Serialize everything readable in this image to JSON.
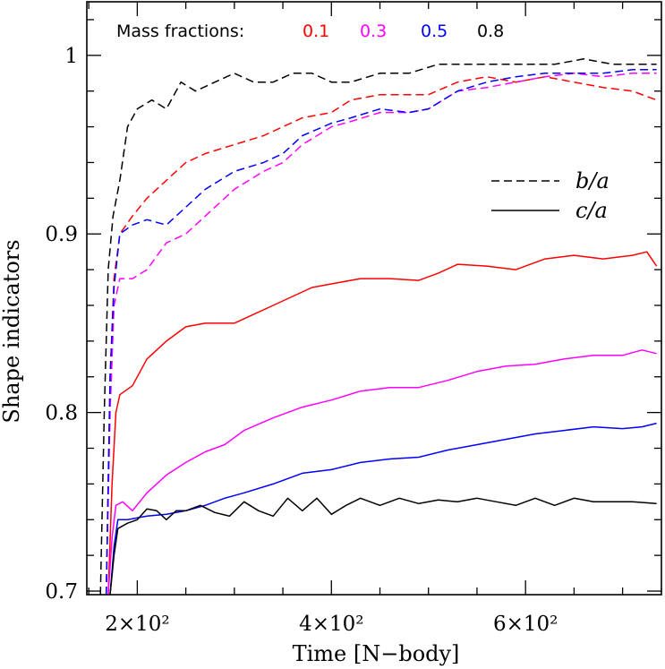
{
  "chart_data": {
    "type": "line",
    "xlabel": "Time [N−body]",
    "ylabel": "Shape indicators",
    "xlim": [
      148,
      740
    ],
    "ylim": [
      0.698,
      1.03
    ],
    "x_ticks": [
      {
        "value": 200,
        "label": "2×10²"
      },
      {
        "value": 400,
        "label": "4×10²"
      },
      {
        "value": 600,
        "label": "6×10²"
      }
    ],
    "y_ticks": [
      {
        "value": 0.7,
        "label": "0.7"
      },
      {
        "value": 0.8,
        "label": "0.8"
      },
      {
        "value": 0.9,
        "label": "0.9"
      },
      {
        "value": 1.0,
        "label": "1"
      }
    ],
    "legend": {
      "title": "Mass fractions:",
      "entries": [
        {
          "label": "0.1",
          "color": "#ff0000"
        },
        {
          "label": "0.3",
          "color": "#ff00ff"
        },
        {
          "label": "0.5",
          "color": "#0000ff"
        },
        {
          "label": "0.8",
          "color": "#000000"
        }
      ],
      "styles": [
        {
          "label": "b/a",
          "dash": "dashed"
        },
        {
          "label": "c/a",
          "dash": "solid"
        }
      ]
    },
    "series": [
      {
        "mass_fraction": "0.1",
        "ratio": "b/a",
        "color": "#ff0000",
        "dash": "dashed",
        "points": [
          [
            168,
            0.698
          ],
          [
            172,
            0.82
          ],
          [
            176,
            0.875
          ],
          [
            182,
            0.9
          ],
          [
            195,
            0.91
          ],
          [
            210,
            0.92
          ],
          [
            230,
            0.93
          ],
          [
            250,
            0.94
          ],
          [
            270,
            0.945
          ],
          [
            300,
            0.95
          ],
          [
            330,
            0.955
          ],
          [
            350,
            0.96
          ],
          [
            370,
            0.965
          ],
          [
            400,
            0.968
          ],
          [
            420,
            0.975
          ],
          [
            450,
            0.978
          ],
          [
            480,
            0.978
          ],
          [
            500,
            0.978
          ],
          [
            530,
            0.985
          ],
          [
            560,
            0.988
          ],
          [
            590,
            0.985
          ],
          [
            620,
            0.988
          ],
          [
            650,
            0.985
          ],
          [
            680,
            0.982
          ],
          [
            710,
            0.98
          ],
          [
            735,
            0.975
          ]
        ]
      },
      {
        "mass_fraction": "0.3",
        "ratio": "b/a",
        "color": "#ff00ff",
        "dash": "dashed",
        "points": [
          [
            168,
            0.698
          ],
          [
            172,
            0.8
          ],
          [
            176,
            0.86
          ],
          [
            182,
            0.875
          ],
          [
            195,
            0.875
          ],
          [
            210,
            0.88
          ],
          [
            230,
            0.895
          ],
          [
            250,
            0.9
          ],
          [
            270,
            0.91
          ],
          [
            300,
            0.925
          ],
          [
            330,
            0.935
          ],
          [
            350,
            0.94
          ],
          [
            370,
            0.95
          ],
          [
            400,
            0.96
          ],
          [
            420,
            0.963
          ],
          [
            450,
            0.968
          ],
          [
            480,
            0.968
          ],
          [
            500,
            0.97
          ],
          [
            530,
            0.98
          ],
          [
            560,
            0.982
          ],
          [
            590,
            0.985
          ],
          [
            620,
            0.988
          ],
          [
            650,
            0.99
          ],
          [
            680,
            0.988
          ],
          [
            710,
            0.99
          ],
          [
            735,
            0.99
          ]
        ]
      },
      {
        "mass_fraction": "0.5",
        "ratio": "b/a",
        "color": "#0000ff",
        "dash": "dashed",
        "points": [
          [
            168,
            0.698
          ],
          [
            172,
            0.82
          ],
          [
            176,
            0.87
          ],
          [
            182,
            0.9
          ],
          [
            195,
            0.905
          ],
          [
            210,
            0.908
          ],
          [
            230,
            0.905
          ],
          [
            250,
            0.915
          ],
          [
            270,
            0.925
          ],
          [
            300,
            0.935
          ],
          [
            330,
            0.94
          ],
          [
            350,
            0.945
          ],
          [
            370,
            0.955
          ],
          [
            400,
            0.962
          ],
          [
            420,
            0.965
          ],
          [
            450,
            0.97
          ],
          [
            480,
            0.968
          ],
          [
            500,
            0.97
          ],
          [
            530,
            0.98
          ],
          [
            560,
            0.985
          ],
          [
            590,
            0.988
          ],
          [
            620,
            0.99
          ],
          [
            650,
            0.99
          ],
          [
            680,
            0.99
          ],
          [
            710,
            0.992
          ],
          [
            735,
            0.992
          ]
        ]
      },
      {
        "mass_fraction": "0.8",
        "ratio": "b/a",
        "color": "#000000",
        "dash": "dashed",
        "points": [
          [
            162,
            0.698
          ],
          [
            166,
            0.8
          ],
          [
            170,
            0.88
          ],
          [
            175,
            0.91
          ],
          [
            182,
            0.93
          ],
          [
            190,
            0.96
          ],
          [
            200,
            0.97
          ],
          [
            215,
            0.975
          ],
          [
            230,
            0.97
          ],
          [
            245,
            0.985
          ],
          [
            260,
            0.98
          ],
          [
            280,
            0.985
          ],
          [
            300,
            0.99
          ],
          [
            320,
            0.985
          ],
          [
            340,
            0.985
          ],
          [
            360,
            0.99
          ],
          [
            380,
            0.99
          ],
          [
            400,
            0.985
          ],
          [
            420,
            0.985
          ],
          [
            450,
            0.99
          ],
          [
            480,
            0.99
          ],
          [
            510,
            0.995
          ],
          [
            540,
            0.995
          ],
          [
            570,
            0.995
          ],
          [
            600,
            0.995
          ],
          [
            630,
            0.995
          ],
          [
            660,
            0.998
          ],
          [
            690,
            0.995
          ],
          [
            720,
            0.995
          ],
          [
            735,
            0.995
          ]
        ]
      },
      {
        "mass_fraction": "0.1",
        "ratio": "c/a",
        "color": "#ff0000",
        "dash": "solid",
        "points": [
          [
            170,
            0.698
          ],
          [
            174,
            0.76
          ],
          [
            178,
            0.8
          ],
          [
            182,
            0.81
          ],
          [
            195,
            0.815
          ],
          [
            210,
            0.83
          ],
          [
            230,
            0.84
          ],
          [
            250,
            0.848
          ],
          [
            270,
            0.85
          ],
          [
            300,
            0.85
          ],
          [
            320,
            0.855
          ],
          [
            340,
            0.86
          ],
          [
            360,
            0.865
          ],
          [
            380,
            0.87
          ],
          [
            400,
            0.872
          ],
          [
            430,
            0.875
          ],
          [
            460,
            0.875
          ],
          [
            490,
            0.874
          ],
          [
            510,
            0.878
          ],
          [
            530,
            0.883
          ],
          [
            560,
            0.882
          ],
          [
            590,
            0.88
          ],
          [
            620,
            0.886
          ],
          [
            650,
            0.888
          ],
          [
            680,
            0.886
          ],
          [
            710,
            0.888
          ],
          [
            725,
            0.89
          ],
          [
            735,
            0.882
          ]
        ]
      },
      {
        "mass_fraction": "0.3",
        "ratio": "c/a",
        "color": "#ff00ff",
        "dash": "solid",
        "points": [
          [
            170,
            0.698
          ],
          [
            174,
            0.73
          ],
          [
            178,
            0.748
          ],
          [
            185,
            0.75
          ],
          [
            195,
            0.745
          ],
          [
            210,
            0.755
          ],
          [
            230,
            0.765
          ],
          [
            250,
            0.772
          ],
          [
            270,
            0.778
          ],
          [
            290,
            0.782
          ],
          [
            310,
            0.79
          ],
          [
            340,
            0.797
          ],
          [
            370,
            0.803
          ],
          [
            400,
            0.807
          ],
          [
            430,
            0.812
          ],
          [
            460,
            0.814
          ],
          [
            490,
            0.814
          ],
          [
            520,
            0.818
          ],
          [
            550,
            0.823
          ],
          [
            580,
            0.826
          ],
          [
            610,
            0.827
          ],
          [
            640,
            0.83
          ],
          [
            670,
            0.832
          ],
          [
            700,
            0.832
          ],
          [
            720,
            0.835
          ],
          [
            735,
            0.833
          ]
        ]
      },
      {
        "mass_fraction": "0.5",
        "ratio": "c/a",
        "color": "#0000ff",
        "dash": "solid",
        "points": [
          [
            172,
            0.698
          ],
          [
            176,
            0.725
          ],
          [
            180,
            0.74
          ],
          [
            190,
            0.74
          ],
          [
            210,
            0.742
          ],
          [
            230,
            0.743
          ],
          [
            250,
            0.745
          ],
          [
            270,
            0.748
          ],
          [
            290,
            0.752
          ],
          [
            310,
            0.755
          ],
          [
            340,
            0.76
          ],
          [
            370,
            0.766
          ],
          [
            400,
            0.768
          ],
          [
            430,
            0.772
          ],
          [
            460,
            0.774
          ],
          [
            490,
            0.775
          ],
          [
            520,
            0.779
          ],
          [
            550,
            0.782
          ],
          [
            580,
            0.785
          ],
          [
            610,
            0.788
          ],
          [
            640,
            0.79
          ],
          [
            670,
            0.792
          ],
          [
            700,
            0.791
          ],
          [
            720,
            0.792
          ],
          [
            735,
            0.794
          ]
        ]
      },
      {
        "mass_fraction": "0.8",
        "ratio": "c/a",
        "color": "#000000",
        "dash": "solid",
        "points": [
          [
            172,
            0.698
          ],
          [
            176,
            0.72
          ],
          [
            180,
            0.735
          ],
          [
            190,
            0.738
          ],
          [
            200,
            0.74
          ],
          [
            210,
            0.746
          ],
          [
            220,
            0.745
          ],
          [
            230,
            0.74
          ],
          [
            240,
            0.745
          ],
          [
            250,
            0.745
          ],
          [
            265,
            0.748
          ],
          [
            280,
            0.744
          ],
          [
            295,
            0.742
          ],
          [
            310,
            0.75
          ],
          [
            325,
            0.745
          ],
          [
            340,
            0.742
          ],
          [
            355,
            0.752
          ],
          [
            370,
            0.745
          ],
          [
            385,
            0.752
          ],
          [
            400,
            0.743
          ],
          [
            415,
            0.748
          ],
          [
            430,
            0.752
          ],
          [
            450,
            0.748
          ],
          [
            470,
            0.752
          ],
          [
            490,
            0.749
          ],
          [
            510,
            0.751
          ],
          [
            530,
            0.75
          ],
          [
            550,
            0.752
          ],
          [
            570,
            0.75
          ],
          [
            590,
            0.748
          ],
          [
            610,
            0.752
          ],
          [
            630,
            0.748
          ],
          [
            650,
            0.752
          ],
          [
            670,
            0.75
          ],
          [
            690,
            0.75
          ],
          [
            710,
            0.75
          ],
          [
            735,
            0.749
          ]
        ]
      }
    ]
  }
}
